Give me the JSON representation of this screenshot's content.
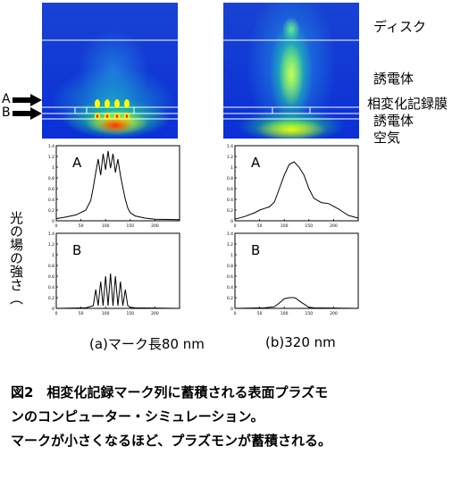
{
  "layer_labels": {
    "disk": "ディスク",
    "dielectric_top": "誘電体",
    "phase_change": "相変化記録膜",
    "dielectric_bottom": "誘電体",
    "air": "空気"
  },
  "markers": {
    "a": "A",
    "b": "B"
  },
  "plot_letters": {
    "a": "A",
    "b": "B"
  },
  "vertical_label": "光の場の強さ（",
  "sub_captions": {
    "left": "(a)マーク長80 nm",
    "right": "(b)320 nm"
  },
  "caption": {
    "line1": "図2　相変化記録マーク列に蓄積される表面プラズモ",
    "line2": "ンのコンピューター・シミュレーション。",
    "line3": "マークが小さくなるほど、プラズモンが蓄積される。"
  },
  "colors": {
    "sim_background": "#0b2fd6",
    "field_high": "#ffff00",
    "field_mid": "#19e08a",
    "field_peak": "#ff2a00"
  },
  "chart_data": [
    {
      "type": "line",
      "title": "A",
      "xlabel": "",
      "ylabel": "",
      "xlim": [
        0,
        250
      ],
      "ylim": [
        0,
        1.4
      ],
      "x_ticks": [
        0,
        50,
        100,
        150,
        200
      ],
      "y_ticks": [
        0,
        0.2,
        0.4,
        0.6,
        0.8,
        1,
        1.2,
        1.4
      ],
      "x": [
        0,
        20,
        40,
        60,
        70,
        75,
        80,
        85,
        90,
        95,
        100,
        105,
        110,
        115,
        120,
        125,
        130,
        135,
        140,
        145,
        150,
        160,
        180,
        200,
        250
      ],
      "y": [
        0.04,
        0.07,
        0.11,
        0.2,
        0.38,
        0.62,
        0.9,
        1.15,
        0.85,
        1.25,
        0.95,
        1.3,
        0.98,
        1.25,
        0.9,
        1.15,
        0.85,
        0.62,
        0.4,
        0.24,
        0.15,
        0.09,
        0.05,
        0.03,
        0.02
      ]
    },
    {
      "type": "line",
      "title": "B",
      "xlabel": "",
      "ylabel": "",
      "xlim": [
        0,
        250
      ],
      "ylim": [
        0,
        1.4
      ],
      "x_ticks": [
        0,
        50,
        100,
        150,
        200
      ],
      "y_ticks": [
        0,
        0.2,
        0.4,
        0.6,
        0.8,
        1,
        1.2,
        1.4
      ],
      "x": [
        0,
        60,
        75,
        80,
        85,
        90,
        95,
        100,
        105,
        110,
        115,
        120,
        125,
        130,
        135,
        140,
        145,
        150,
        160,
        250
      ],
      "y": [
        0,
        0.01,
        0.05,
        0.35,
        0.05,
        0.5,
        0.05,
        0.6,
        0.05,
        0.65,
        0.05,
        0.6,
        0.05,
        0.5,
        0.05,
        0.35,
        0.05,
        0.02,
        0.01,
        0
      ]
    },
    {
      "type": "line",
      "title": "A",
      "xlabel": "",
      "ylabel": "",
      "xlim": [
        0,
        250
      ],
      "ylim": [
        0,
        1.4
      ],
      "x_ticks": [
        0,
        50,
        100,
        150,
        200
      ],
      "y_ticks": [
        0,
        0.2,
        0.4,
        0.6,
        0.8,
        1,
        1.2,
        1.4
      ],
      "x": [
        0,
        20,
        40,
        50,
        60,
        70,
        80,
        90,
        100,
        110,
        120,
        130,
        140,
        150,
        160,
        175,
        190,
        210,
        230,
        250
      ],
      "y": [
        0.03,
        0.08,
        0.15,
        0.2,
        0.23,
        0.26,
        0.35,
        0.6,
        0.85,
        1.05,
        1.1,
        1.0,
        0.85,
        0.6,
        0.42,
        0.34,
        0.32,
        0.22,
        0.1,
        0.05
      ]
    },
    {
      "type": "line",
      "title": "B",
      "xlabel": "",
      "ylabel": "",
      "xlim": [
        0,
        250
      ],
      "ylim": [
        0,
        1.4
      ],
      "x_ticks": [
        0,
        50,
        100,
        150,
        200
      ],
      "y_ticks": [
        0,
        0.2,
        0.4,
        0.6,
        0.8,
        1,
        1.2,
        1.4
      ],
      "x": [
        0,
        60,
        80,
        90,
        100,
        110,
        120,
        125,
        130,
        140,
        150,
        160,
        250
      ],
      "y": [
        0,
        0.01,
        0.03,
        0.1,
        0.18,
        0.2,
        0.2,
        0.18,
        0.14,
        0.08,
        0.02,
        0.01,
        0
      ]
    }
  ]
}
